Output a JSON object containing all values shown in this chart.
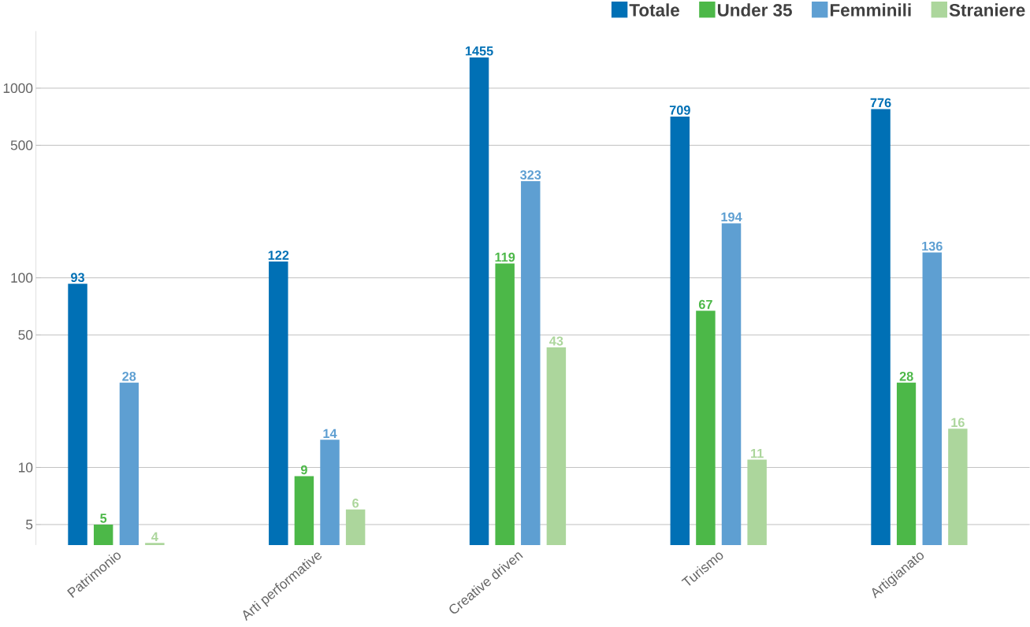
{
  "chart_data": {
    "type": "bar",
    "categories": [
      "Patrimonio",
      "Arti performative",
      "Creative driven",
      "Turismo",
      "Artigianato"
    ],
    "series": [
      {
        "name": "Totale",
        "color": "#0070b5",
        "values": [
          93,
          122,
          1455,
          709,
          776
        ]
      },
      {
        "name": "Under 35",
        "color": "#4cb848",
        "values": [
          5,
          9,
          119,
          67,
          28
        ]
      },
      {
        "name": "Femminili",
        "color": "#5e9fd2",
        "values": [
          28,
          14,
          323,
          194,
          136
        ]
      },
      {
        "name": "Straniere",
        "color": "#acd69c",
        "values": [
          4,
          6,
          43,
          11,
          16
        ]
      }
    ],
    "log": "y",
    "ylim": [
      3.9,
      2000
    ],
    "yticks": [
      5,
      10,
      50,
      100,
      500,
      1000
    ],
    "grid": "y",
    "legend": "top right",
    "data_labels": true
  }
}
